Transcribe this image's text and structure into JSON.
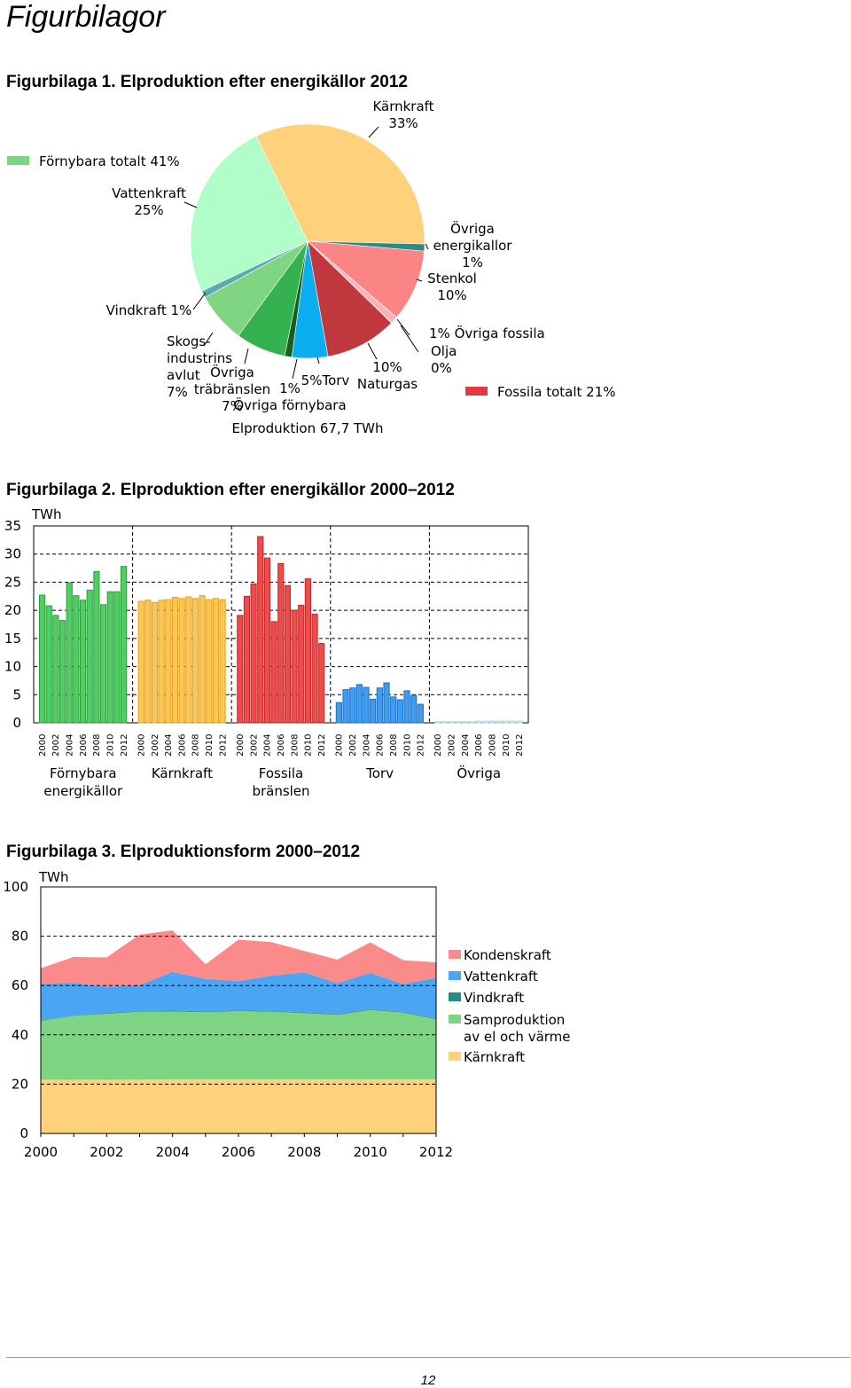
{
  "page": {
    "heading": "Figurbilagor",
    "page_number": "12"
  },
  "figures": {
    "fig1_title": "Figurbilaga 1. Elproduktion efter energikällor 2012",
    "fig2_title": "Figurbilaga 2. Elproduktion efter energikällor 2000–2012",
    "fig3_title": "Figurbilaga 3. Elproduktionsform 2000–2012"
  },
  "chart_data": [
    {
      "type": "pie",
      "title": "Figurbilaga 1. Elproduktion efter energikällor 2012",
      "total_label": "Elproduktion 67,7 TWh",
      "group_legend": [
        {
          "label": "Förnybara totalt 41%",
          "color": "#7dd583"
        },
        {
          "label": "Fossila totalt 21%",
          "color": "#e6393f"
        }
      ],
      "slices": [
        {
          "name": "Kärnkraft",
          "value": 33,
          "color": "#fed17a",
          "label_lines": [
            "Kärnkraft",
            "33%"
          ]
        },
        {
          "name": "Övriga energikällor",
          "value": 1,
          "color": "#2a8a86",
          "label_lines": [
            "Övriga",
            "energikallor",
            "1%"
          ]
        },
        {
          "name": "Stenkol",
          "value": 10,
          "color": "#fb8484",
          "label_lines": [
            "Stenkol",
            "10%"
          ]
        },
        {
          "name": "Övriga fossila",
          "value": 1,
          "color": "#fbb3b3",
          "label_lines": [
            "1% Övriga fossila"
          ]
        },
        {
          "name": "Olja",
          "value": 0,
          "color": "#e06060",
          "label_lines": [
            "Olja",
            "0%"
          ]
        },
        {
          "name": "Naturgas",
          "value": 10,
          "color": "#c0373d",
          "label_lines": [
            "10%",
            "Naturgas"
          ]
        },
        {
          "name": "Torv",
          "value": 5,
          "color": "#0aaef0",
          "label_lines": [
            "5%Torv"
          ]
        },
        {
          "name": "Övriga förnybara",
          "value": 1,
          "color": "#14601e",
          "label_lines": [
            "1%",
            "Övriga förnybara"
          ]
        },
        {
          "name": "Övriga träbränslen",
          "value": 7,
          "color": "#33b24f",
          "label_lines": [
            "Övriga",
            "träbränslen",
            "7%"
          ]
        },
        {
          "name": "Skogsindustrins avlut",
          "value": 7,
          "color": "#80d582",
          "label_lines": [
            "Skogs-",
            "industrins",
            "avlut",
            "7%"
          ]
        },
        {
          "name": "Vindkraft",
          "value": 1,
          "color": "#5cabb1",
          "label_lines": [
            "Vindkraft 1%"
          ]
        },
        {
          "name": "Vattenkraft",
          "value": 25,
          "color": "#b0fdc9",
          "label_lines": [
            "Vattenkraft",
            "25%"
          ]
        }
      ]
    },
    {
      "type": "bar",
      "title": "Figurbilaga 2. Elproduktion efter energikällor 2000–2012",
      "ylabel": "TWh",
      "ylim": [
        0,
        35
      ],
      "yticks": [
        0,
        5,
        10,
        15,
        20,
        25,
        30,
        35
      ],
      "grid": true,
      "years": [
        2000,
        2001,
        2002,
        2003,
        2004,
        2005,
        2006,
        2007,
        2008,
        2009,
        2010,
        2011,
        2012
      ],
      "year_tick_labels": [
        "2000",
        "2002",
        "2004",
        "2006",
        "2008",
        "2010",
        "2012"
      ],
      "groups": [
        {
          "name": "Förnybara energikällor",
          "label_lines": [
            "Förnybara",
            "energikällor"
          ],
          "color": "#4fcf62",
          "edge": "#2f9c40",
          "values": [
            22.7,
            20.8,
            19.1,
            18.2,
            24.9,
            22.6,
            21.8,
            23.6,
            26.9,
            21.0,
            23.3,
            23.3,
            27.8
          ]
        },
        {
          "name": "Kärnkraft",
          "label_lines": [
            "Kärnkraft"
          ],
          "color": "#fdc64e",
          "edge": "#e0a22a",
          "values": [
            21.6,
            21.8,
            21.4,
            21.8,
            21.9,
            22.3,
            22.1,
            22.4,
            22.1,
            22.6,
            21.9,
            22.1,
            21.9
          ]
        },
        {
          "name": "Fossila bränslen",
          "label_lines": [
            "Fossila",
            "bränslen"
          ],
          "color": "#f04a4a",
          "edge": "#b82a2a",
          "values": [
            19.1,
            22.5,
            24.7,
            33.1,
            29.3,
            18.0,
            28.3,
            24.4,
            20.0,
            20.9,
            25.6,
            19.3,
            14.1
          ]
        },
        {
          "name": "Torv",
          "label_lines": [
            "Torv"
          ],
          "color": "#3e9cf2",
          "edge": "#1b6fc4",
          "values": [
            3.6,
            5.9,
            6.2,
            6.8,
            6.3,
            4.2,
            6.2,
            7.1,
            4.6,
            4.1,
            5.7,
            4.9,
            3.3
          ]
        },
        {
          "name": "Övriga",
          "label_lines": [
            "Övriga"
          ],
          "color": "#c9eef2",
          "edge": "#a9d9de",
          "values": [
            0.2,
            0.2,
            0.2,
            0.2,
            0.2,
            0.2,
            0.3,
            0.3,
            0.3,
            0.3,
            0.3,
            0.3,
            0.3
          ]
        }
      ]
    },
    {
      "type": "area",
      "title": "Figurbilaga 3. Elproduktionsform 2000–2012",
      "ylabel": "TWh",
      "ylim": [
        0,
        100
      ],
      "yticks": [
        0,
        20,
        40,
        60,
        80,
        100
      ],
      "xticks": [
        2000,
        2002,
        2004,
        2006,
        2008,
        2010,
        2012
      ],
      "x": [
        2000,
        2001,
        2002,
        2003,
        2004,
        2005,
        2006,
        2007,
        2008,
        2009,
        2010,
        2011,
        2012
      ],
      "grid": true,
      "legend_position": "right",
      "series": [
        {
          "name": "Kärnkraft",
          "label_lines": [
            "Kärnkraft"
          ],
          "color": "#fed17a",
          "values": [
            21.8,
            21.8,
            21.8,
            21.8,
            22.0,
            22.0,
            22.0,
            22.0,
            22.0,
            22.0,
            22.0,
            22.0,
            22.0
          ]
        },
        {
          "name": "Samproduktion av el och värme",
          "label_lines": [
            "Samproduktion",
            "av el och värme"
          ],
          "color": "#7dd583",
          "values": [
            23.9,
            25.9,
            26.7,
            27.6,
            27.5,
            27.2,
            27.6,
            27.4,
            26.8,
            26.1,
            28.1,
            27.0,
            24.3
          ]
        },
        {
          "name": "Vindkraft",
          "label_lines": [
            "Vindkraft"
          ],
          "color": "#2a8a86",
          "values": [
            0.2,
            0.2,
            0.3,
            0.3,
            0.3,
            0.3,
            0.3,
            0.3,
            0.3,
            0.3,
            0.3,
            0.3,
            0.3
          ]
        },
        {
          "name": "Vattenkraft",
          "label_lines": [
            "Vattenkraft"
          ],
          "color": "#4aa6f2",
          "values": [
            14.9,
            13.1,
            10.7,
            10.4,
            15.7,
            13.2,
            11.9,
            14.3,
            16.3,
            12.5,
            14.7,
            11.3,
            16.5
          ]
        },
        {
          "name": "Kondenskraft",
          "label_lines": [
            "Kondenskraft"
          ],
          "color": "#fb8a8a",
          "values": [
            6.2,
            10.6,
            11.9,
            20.5,
            16.9,
            5.9,
            16.8,
            13.6,
            8.6,
            9.6,
            12.4,
            9.7,
            6.3
          ]
        }
      ]
    }
  ]
}
